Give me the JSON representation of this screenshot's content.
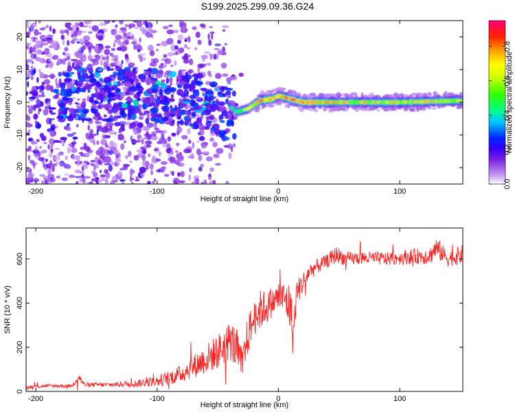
{
  "title": "S199.2025.299.09.36.G24",
  "chart_data": [
    {
      "type": "heatmap",
      "name": "spectrogram",
      "xlabel": "Height of straight line (km)",
      "ylabel": "Frequency (Hz)",
      "xlim": [
        -208,
        152
      ],
      "ylim": [
        -25,
        25
      ],
      "xticks": [
        -200,
        -100,
        0,
        100
      ],
      "xtick_labels": [
        "-200",
        "-100",
        "0",
        "100"
      ],
      "yticks": [
        -20,
        -10,
        0,
        10,
        20
      ],
      "ytick_labels": [
        "-20",
        "-10",
        "0",
        "10",
        "20"
      ],
      "colorbar": {
        "label": "Normalized spectral amplitude",
        "range": [
          0,
          0.95
        ],
        "ticks": [
          0.0,
          0.2,
          0.4,
          0.6,
          0.8
        ],
        "tick_labels": [
          "0.0",
          "0.2",
          "0.4",
          "0.6",
          "0.8"
        ],
        "colormap": [
          "#ffffff",
          "#d8b4f8",
          "#8a2be2",
          "#3f00ff",
          "#0033ff",
          "#00ccff",
          "#00ff66",
          "#66ff00",
          "#ffff00",
          "#ff8800",
          "#ff0000",
          "#ff0088"
        ]
      },
      "signal_track": {
        "x": [
          -40,
          -35,
          -25,
          -15,
          -5,
          0,
          10,
          20,
          50,
          100,
          152
        ],
        "frequency": [
          -1,
          -3,
          -2,
          0.5,
          1,
          2,
          1,
          0,
          0,
          0,
          0.5
        ],
        "amplitude": [
          0.3,
          0.45,
          0.6,
          0.75,
          0.8,
          0.7,
          0.85,
          0.8,
          0.65,
          0.65,
          0.6
        ]
      }
    },
    {
      "type": "line",
      "name": "snr",
      "xlabel": "Height of straight line (km)",
      "ylabel": "SNR (10 * v/v)",
      "xlim": [
        -208,
        152
      ],
      "ylim": [
        0,
        740
      ],
      "xticks": [
        -200,
        -100,
        0,
        100
      ],
      "xtick_labels": [
        "-200",
        "-100",
        "0",
        "100"
      ],
      "yticks": [
        0,
        200,
        400,
        600
      ],
      "ytick_labels": [
        "0",
        "200",
        "400",
        "600"
      ],
      "color": "#ff2020",
      "x": [
        -208,
        -190,
        -170,
        -165,
        -160,
        -140,
        -120,
        -100,
        -80,
        -65,
        -50,
        -40,
        -35,
        -30,
        -25,
        -20,
        -15,
        -10,
        -5,
        0,
        5,
        10,
        12,
        15,
        20,
        25,
        30,
        40,
        48,
        55,
        70,
        90,
        110,
        125,
        130,
        140,
        152
      ],
      "y": [
        20,
        25,
        25,
        70,
        30,
        30,
        35,
        45,
        80,
        130,
        180,
        230,
        200,
        110,
        260,
        330,
        370,
        380,
        400,
        430,
        420,
        380,
        240,
        450,
        490,
        540,
        560,
        590,
        620,
        600,
        605,
        600,
        610,
        615,
        650,
        600,
        620
      ],
      "noise": [
        8,
        8,
        8,
        25,
        10,
        10,
        15,
        25,
        40,
        60,
        80,
        90,
        100,
        80,
        90,
        80,
        90,
        80,
        60,
        70,
        80,
        120,
        80,
        60,
        50,
        40,
        35,
        30,
        40,
        30,
        30,
        30,
        35,
        40,
        50,
        35,
        45
      ]
    }
  ]
}
